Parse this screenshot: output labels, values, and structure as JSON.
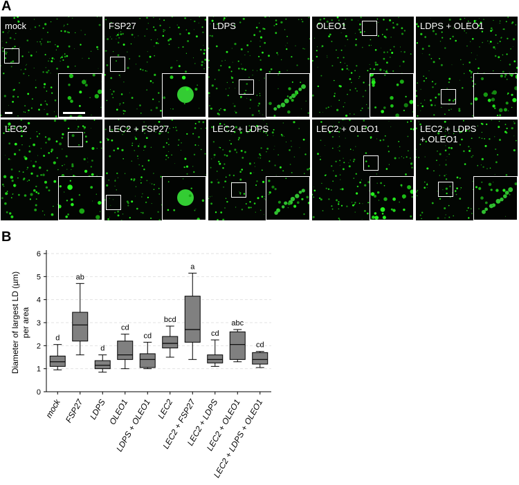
{
  "figure": {
    "panel_a_letter": "A",
    "panel_b_letter": "B"
  },
  "micrographs": [
    {
      "label": "mock",
      "roi": [
        5,
        46
      ],
      "style": "small"
    },
    {
      "label": "FSP27",
      "roi": [
        8,
        58
      ],
      "style": "big"
    },
    {
      "label": "LDPS",
      "roi": [
        44,
        91
      ],
      "style": "chain"
    },
    {
      "label": "OLEO1",
      "roi": [
        72,
        6
      ],
      "style": "small"
    },
    {
      "label": "LDPS + OLEO1",
      "roi": [
        36,
        105
      ],
      "style": "cluster"
    },
    {
      "label": "LEC2",
      "roi": [
        97,
        18
      ],
      "style": "medium"
    },
    {
      "label": "LEC2 + FSP27",
      "roi": [
        2,
        109
      ],
      "style": "big"
    },
    {
      "label": "LEC2 + LDPS",
      "roi": [
        33,
        91
      ],
      "style": "chain"
    },
    {
      "label": "LEC2 + OLEO1",
      "roi": [
        74,
        52
      ],
      "style": "cluster"
    },
    {
      "label": "LEC2 + LDPS\n+ OLEO1",
      "roi": [
        32,
        90
      ],
      "style": "chain"
    }
  ],
  "chart_data": {
    "type": "box",
    "ylabel_line1": "Diameter of largest LD (µm)",
    "ylabel_line2": "per area",
    "ylim": [
      0,
      6
    ],
    "yticks": [
      0,
      1,
      2,
      3,
      4,
      5,
      6
    ],
    "grid": "horizontal-dashed",
    "box_color": "#808080",
    "categories": [
      "mock",
      "FSP27",
      "LDPS",
      "OLEO1",
      "LDPS + OLEO1",
      "LEC2",
      "LEC2 + FSP27",
      "LEC2 + LDPS",
      "LEC2 + OLEO1",
      "LEC2 + LDPS + OLEO1"
    ],
    "boxes": [
      {
        "min": 0.95,
        "q1": 1.1,
        "median": 1.3,
        "q3": 1.55,
        "max": 2.05,
        "group": "d"
      },
      {
        "min": 1.6,
        "q1": 2.2,
        "median": 2.9,
        "q3": 3.45,
        "max": 4.7,
        "group": "ab"
      },
      {
        "min": 0.85,
        "q1": 1.0,
        "median": 1.15,
        "q3": 1.35,
        "max": 1.6,
        "group": "d"
      },
      {
        "min": 1.0,
        "q1": 1.4,
        "median": 1.6,
        "q3": 2.2,
        "max": 2.5,
        "group": "cd"
      },
      {
        "min": 1.0,
        "q1": 1.05,
        "median": 1.4,
        "q3": 1.65,
        "max": 2.15,
        "group": "cd"
      },
      {
        "min": 1.5,
        "q1": 1.9,
        "median": 2.1,
        "q3": 2.4,
        "max": 2.85,
        "group": "bcd"
      },
      {
        "min": 1.4,
        "q1": 2.15,
        "median": 2.7,
        "q3": 4.15,
        "max": 5.15,
        "group": "a"
      },
      {
        "min": 1.1,
        "q1": 1.25,
        "median": 1.4,
        "q3": 1.6,
        "max": 2.25,
        "group": "cd"
      },
      {
        "min": 1.3,
        "q1": 1.4,
        "median": 2.05,
        "q3": 2.6,
        "max": 2.7,
        "group": "abc"
      },
      {
        "min": 1.05,
        "q1": 1.2,
        "median": 1.4,
        "q3": 1.7,
        "max": 1.75,
        "group": "cd"
      }
    ]
  }
}
